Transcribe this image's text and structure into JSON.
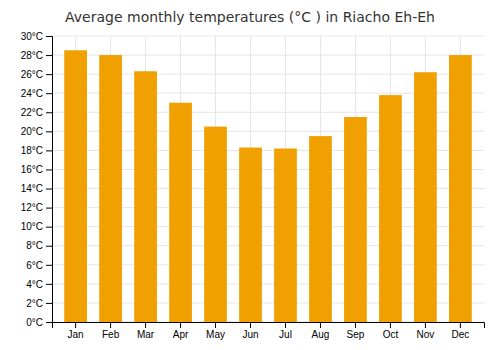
{
  "chart_data": {
    "type": "bar",
    "title": "Average monthly temperatures (°C ) in Riacho Eh-Eh",
    "categories": [
      "Jan",
      "Feb",
      "Mar",
      "Apr",
      "May",
      "Jun",
      "Jul",
      "Aug",
      "Sep",
      "Oct",
      "Nov",
      "Dec"
    ],
    "values": [
      28.5,
      28.0,
      26.3,
      23.0,
      20.5,
      18.3,
      18.2,
      19.5,
      21.5,
      23.8,
      26.2,
      28.0
    ],
    "color": "#F0A000",
    "ylim": [
      0,
      30
    ],
    "yticks": [
      {
        "value": 0,
        "label": "0°C"
      },
      {
        "value": 2,
        "label": "2°C"
      },
      {
        "value": 4,
        "label": "4°C"
      },
      {
        "value": 6,
        "label": "6°C"
      },
      {
        "value": 8,
        "label": "8°C"
      },
      {
        "value": 10,
        "label": "10°C"
      },
      {
        "value": 12,
        "label": "12°C"
      },
      {
        "value": 14,
        "label": "14°C"
      },
      {
        "value": 16,
        "label": "16°C"
      },
      {
        "value": 18,
        "label": "18°C"
      },
      {
        "value": 20,
        "label": "20°C"
      },
      {
        "value": 22,
        "label": "22°C"
      },
      {
        "value": 24,
        "label": "24°C"
      },
      {
        "value": 26,
        "label": "26°C"
      },
      {
        "value": 28,
        "label": "28°C"
      },
      {
        "value": 30,
        "label": "30°C"
      }
    ],
    "grid": true
  }
}
